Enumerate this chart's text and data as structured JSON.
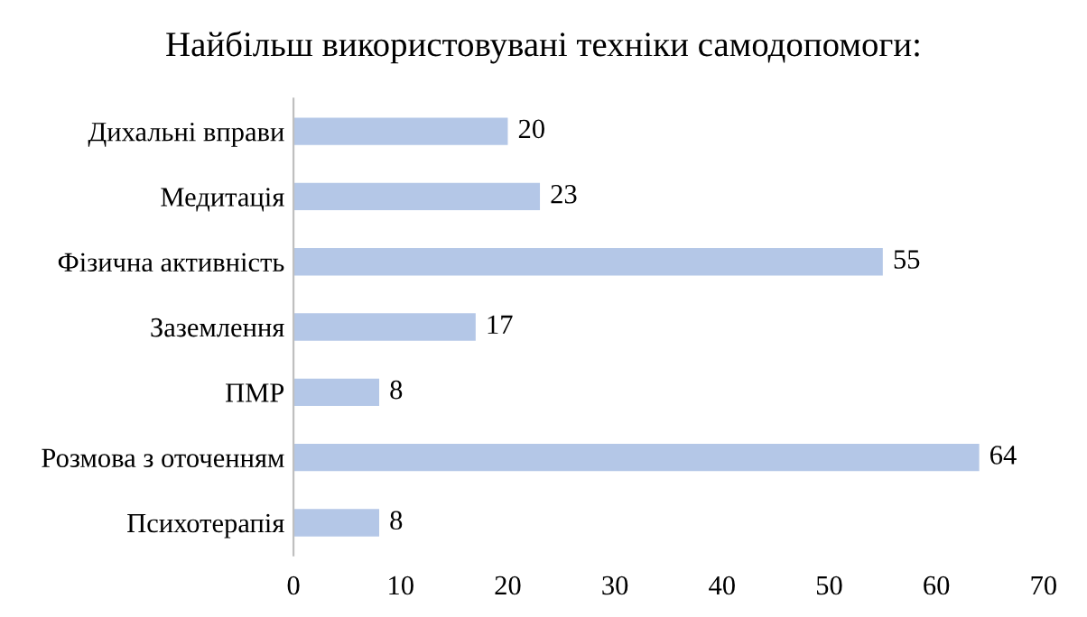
{
  "chart_data": {
    "type": "bar",
    "orientation": "horizontal",
    "title": "Найбільш використовувані техніки самодопомоги:",
    "categories": [
      "Дихальні вправи",
      "Медитація",
      "Фізична активність",
      "Заземлення",
      "ПМР",
      "Розмова з оточенням",
      "Психотерапія"
    ],
    "values": [
      20,
      23,
      55,
      17,
      8,
      64,
      8
    ],
    "color": "#b4c7e7",
    "xlim": [
      0,
      70
    ],
    "xticks": [
      0,
      10,
      20,
      30,
      40,
      50,
      60,
      70
    ],
    "grid": false,
    "data_labels": true
  }
}
